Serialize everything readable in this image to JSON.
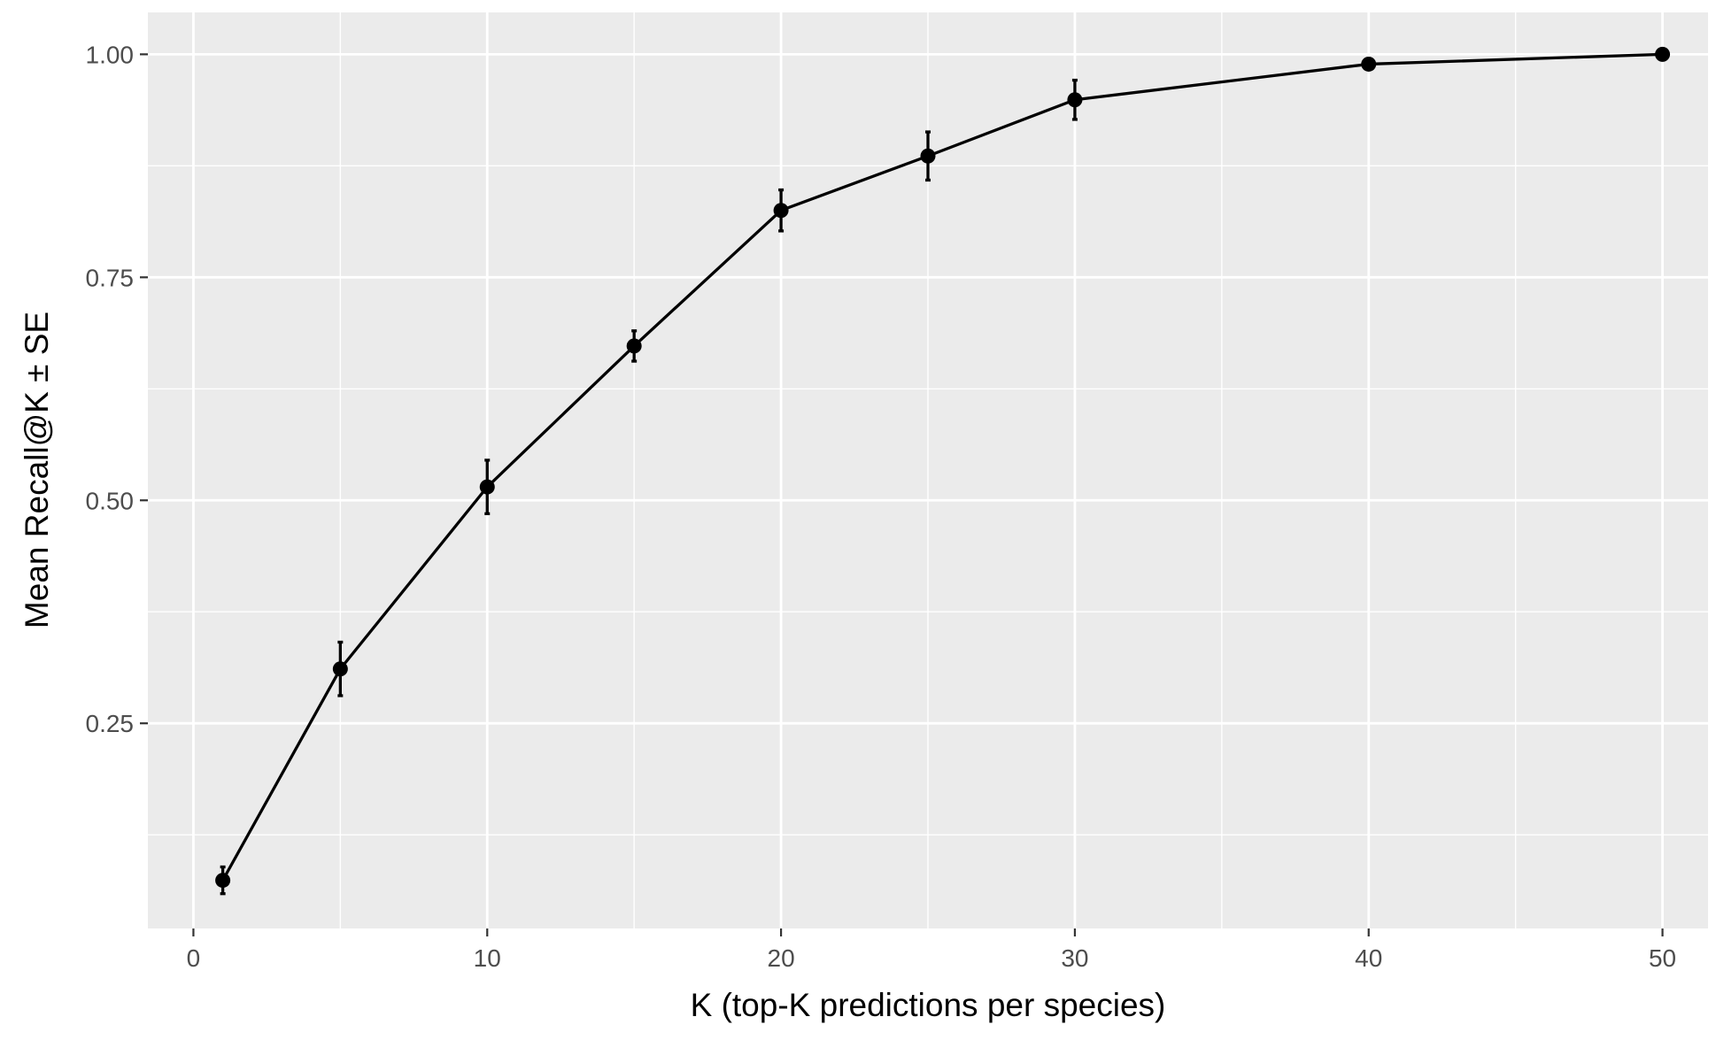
{
  "chart_data": {
    "type": "line",
    "title": "",
    "xlabel": "K (top-K predictions per species)",
    "ylabel": "Mean Recall@K ± SE",
    "xlim": [
      -1.55,
      51.55
    ],
    "ylim": [
      0.02,
      1.047
    ],
    "x_ticks": [
      0,
      10,
      20,
      30,
      40,
      50
    ],
    "x_tick_labels": [
      "0",
      "10",
      "20",
      "30",
      "40",
      "50"
    ],
    "x_minor_ticks": [
      5,
      15,
      25,
      35,
      45
    ],
    "y_ticks": [
      0.25,
      0.5,
      0.75,
      1.0
    ],
    "y_tick_labels": [
      "0.25",
      "0.50",
      "0.75",
      "1.00"
    ],
    "y_minor_ticks": [
      0.125,
      0.375,
      0.625,
      0.875
    ],
    "grid": true,
    "legend": "none",
    "colors": {
      "panel_background": "#ebebeb",
      "grid": "#ffffff",
      "series": "#000000",
      "tick": "#333333"
    },
    "series": [
      {
        "x": [
          1,
          5,
          10,
          15,
          20,
          25,
          30,
          40,
          50
        ],
        "y": [
          0.074,
          0.311,
          0.515,
          0.673,
          0.825,
          0.886,
          0.949,
          0.989,
          1.0
        ],
        "se": [
          0.015,
          0.03,
          0.03,
          0.017,
          0.023,
          0.027,
          0.022,
          0.0,
          0.0
        ]
      }
    ]
  }
}
